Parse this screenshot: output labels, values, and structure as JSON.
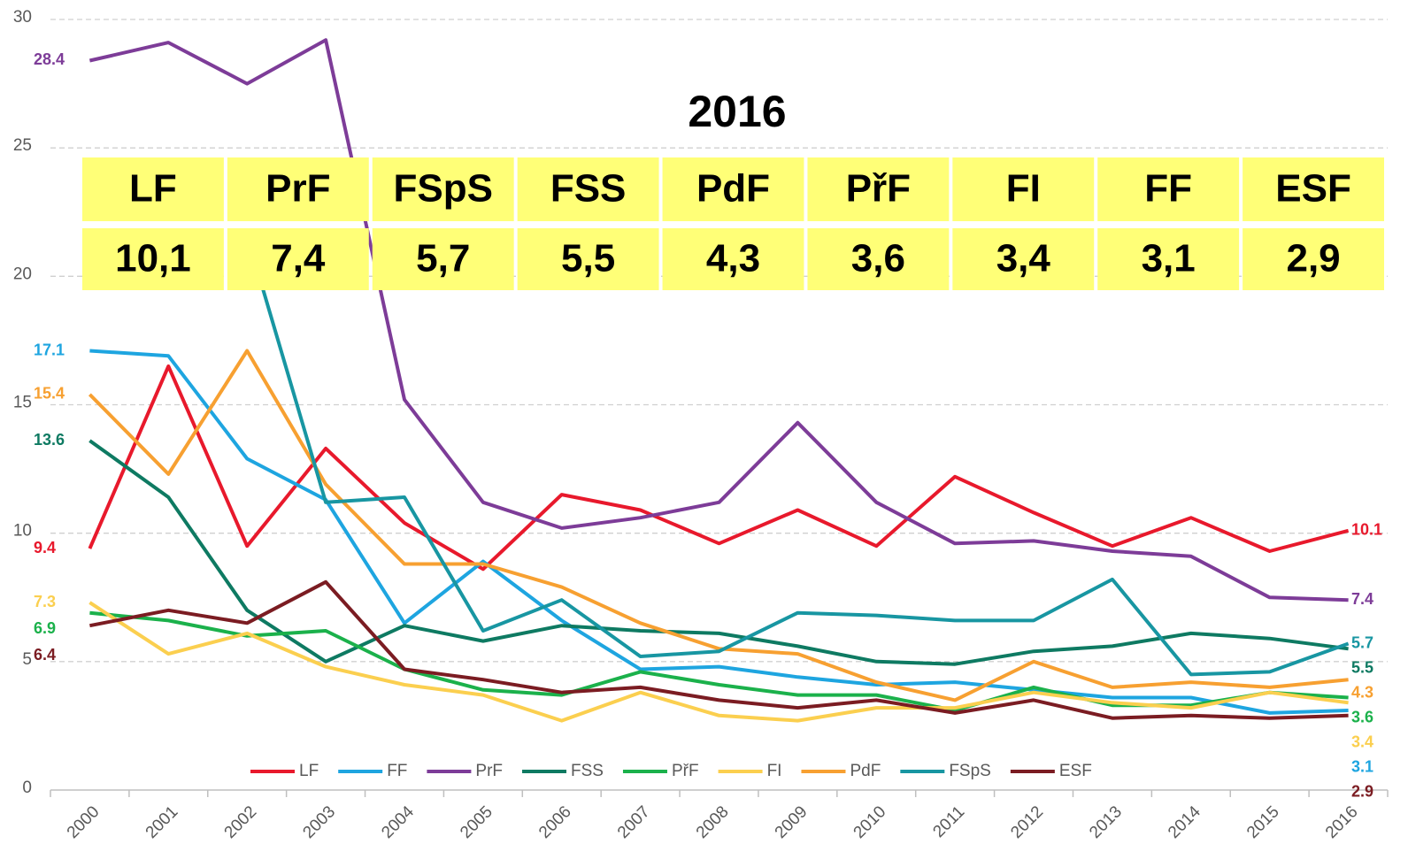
{
  "chart_data": {
    "type": "line",
    "categories": [
      "2000",
      "2001",
      "2002",
      "2003",
      "2004",
      "2005",
      "2006",
      "2007",
      "2008",
      "2009",
      "2010",
      "2011",
      "2012",
      "2013",
      "2014",
      "2015",
      "2016"
    ],
    "ylim": [
      0,
      30
    ],
    "yticks": [
      0,
      5,
      10,
      15,
      20,
      25,
      30
    ],
    "grid": true,
    "legend": "bottom",
    "series": [
      {
        "name": "LF",
        "color": "#e8192c",
        "values": [
          9.4,
          16.5,
          9.5,
          13.3,
          10.4,
          8.6,
          11.5,
          10.9,
          9.6,
          10.9,
          9.5,
          12.2,
          10.8,
          9.5,
          10.6,
          9.3,
          10.1
        ]
      },
      {
        "name": "FF",
        "color": "#1ea5e0",
        "values": [
          17.1,
          16.9,
          12.9,
          11.3,
          6.5,
          8.9,
          6.6,
          4.7,
          4.8,
          4.4,
          4.1,
          4.2,
          3.9,
          3.6,
          3.6,
          3.0,
          3.1
        ]
      },
      {
        "name": "PrF",
        "color": "#7d3c98",
        "values": [
          28.4,
          29.1,
          27.5,
          29.2,
          15.2,
          11.2,
          10.2,
          10.6,
          11.2,
          14.3,
          11.2,
          9.6,
          9.7,
          9.3,
          9.1,
          7.5,
          7.4
        ]
      },
      {
        "name": "FSS",
        "color": "#0e7a62",
        "values": [
          13.6,
          11.4,
          7.0,
          5.0,
          6.4,
          5.8,
          6.4,
          6.2,
          6.1,
          5.6,
          5.0,
          4.9,
          5.4,
          5.6,
          6.1,
          5.9,
          5.5
        ]
      },
      {
        "name": "PřF",
        "color": "#1bb14b",
        "values": [
          6.9,
          6.6,
          6.0,
          6.2,
          4.7,
          3.9,
          3.7,
          4.6,
          4.1,
          3.7,
          3.7,
          3.1,
          4.0,
          3.3,
          3.3,
          3.8,
          3.6
        ]
      },
      {
        "name": "FI",
        "color": "#fbcf4f",
        "values": [
          7.3,
          5.3,
          6.1,
          4.8,
          4.1,
          3.7,
          2.7,
          3.8,
          2.9,
          2.7,
          3.2,
          3.2,
          3.8,
          3.4,
          3.2,
          3.8,
          3.4
        ]
      },
      {
        "name": "PdF",
        "color": "#f7a031",
        "values": [
          15.4,
          12.3,
          17.1,
          11.9,
          8.8,
          8.8,
          7.9,
          6.5,
          5.5,
          5.3,
          4.2,
          3.5,
          5.0,
          4.0,
          4.2,
          4.0,
          4.3
        ]
      },
      {
        "name": "FSpS",
        "color": "#1896a2",
        "values": [
          null,
          null,
          21.6,
          11.2,
          11.4,
          6.2,
          7.4,
          5.2,
          5.4,
          6.9,
          6.8,
          6.6,
          6.6,
          8.2,
          4.5,
          4.6,
          5.7
        ]
      },
      {
        "name": "ESF",
        "color": "#7b1c22",
        "values": [
          6.4,
          7.0,
          6.5,
          8.1,
          4.7,
          4.3,
          3.8,
          4.0,
          3.5,
          3.2,
          3.5,
          3.0,
          3.5,
          2.8,
          2.9,
          2.8,
          2.9
        ]
      }
    ]
  },
  "table": {
    "title": "2016",
    "header": [
      "LF",
      "PrF",
      "FSpS",
      "FSS",
      "PdF",
      "PřF",
      "FI",
      "FF",
      "ESF"
    ],
    "values": [
      "10,1",
      "7,4",
      "5,7",
      "5,5",
      "4,3",
      "3,6",
      "3,4",
      "3,1",
      "2,9"
    ],
    "color": "#ffff77"
  }
}
